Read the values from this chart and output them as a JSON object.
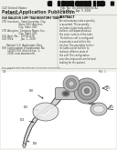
{
  "bg_color": "#f0f0eb",
  "barcode_color": "#111111",
  "header_color": "#333333",
  "diagram_bg": "#f8f8f5",
  "font_size_title": 3.8,
  "font_size_small": 2.2,
  "font_size_tiny": 1.8,
  "tube_fill": "#d8d8d8",
  "tube_edge": "#555555",
  "cuff_fill": "#e8e8e8",
  "flange_fill": "#c8c8c8",
  "connector_fill": "#b8b8b8",
  "connector_inner": "#888888",
  "pilot_fill": "#d0d0d0",
  "label_nums": [
    "100",
    "102",
    "104",
    "106",
    "108"
  ],
  "line_col": "#aaaaaa"
}
